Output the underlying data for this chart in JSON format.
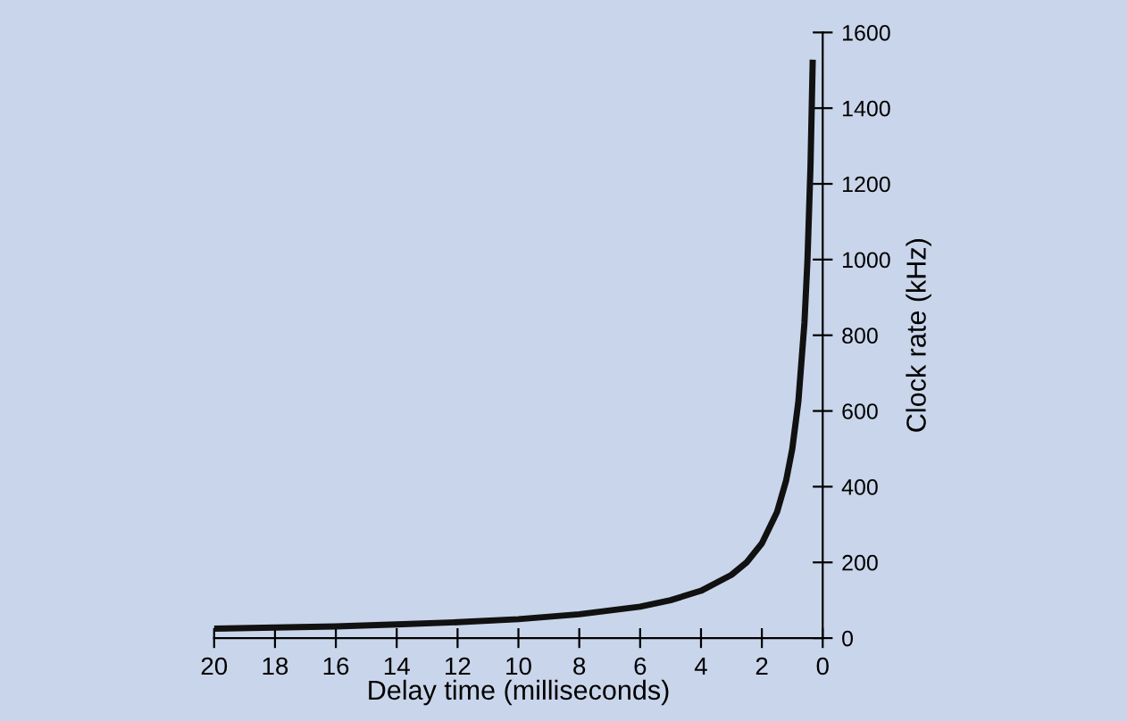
{
  "chart_data": {
    "type": "line",
    "xlabel": "Delay time (milliseconds)",
    "ylabel": "Clock rate (kHz)",
    "x": [
      20,
      18,
      16,
      14,
      12,
      10,
      8,
      6,
      5,
      4,
      3,
      2.5,
      2,
      1.5,
      1.2,
      1,
      0.8,
      0.6,
      0.5,
      0.4,
      0.33
    ],
    "series": [
      {
        "color": "#111111",
        "values": [
          25,
          28,
          31,
          36,
          42,
          50,
          63,
          83,
          100,
          125,
          167,
          200,
          250,
          333,
          417,
          500,
          625,
          833,
          1000,
          1250,
          1520
        ]
      }
    ],
    "xlim": [
      20,
      0
    ],
    "xticks": [
      20,
      18,
      16,
      14,
      12,
      10,
      8,
      6,
      4,
      2,
      0
    ],
    "ylim": [
      0,
      1600
    ],
    "yticks": [
      0,
      200,
      400,
      600,
      800,
      1000,
      1200,
      1400,
      1600
    ],
    "grid": false,
    "legend": false,
    "marker": "none",
    "line_style": "solid"
  }
}
